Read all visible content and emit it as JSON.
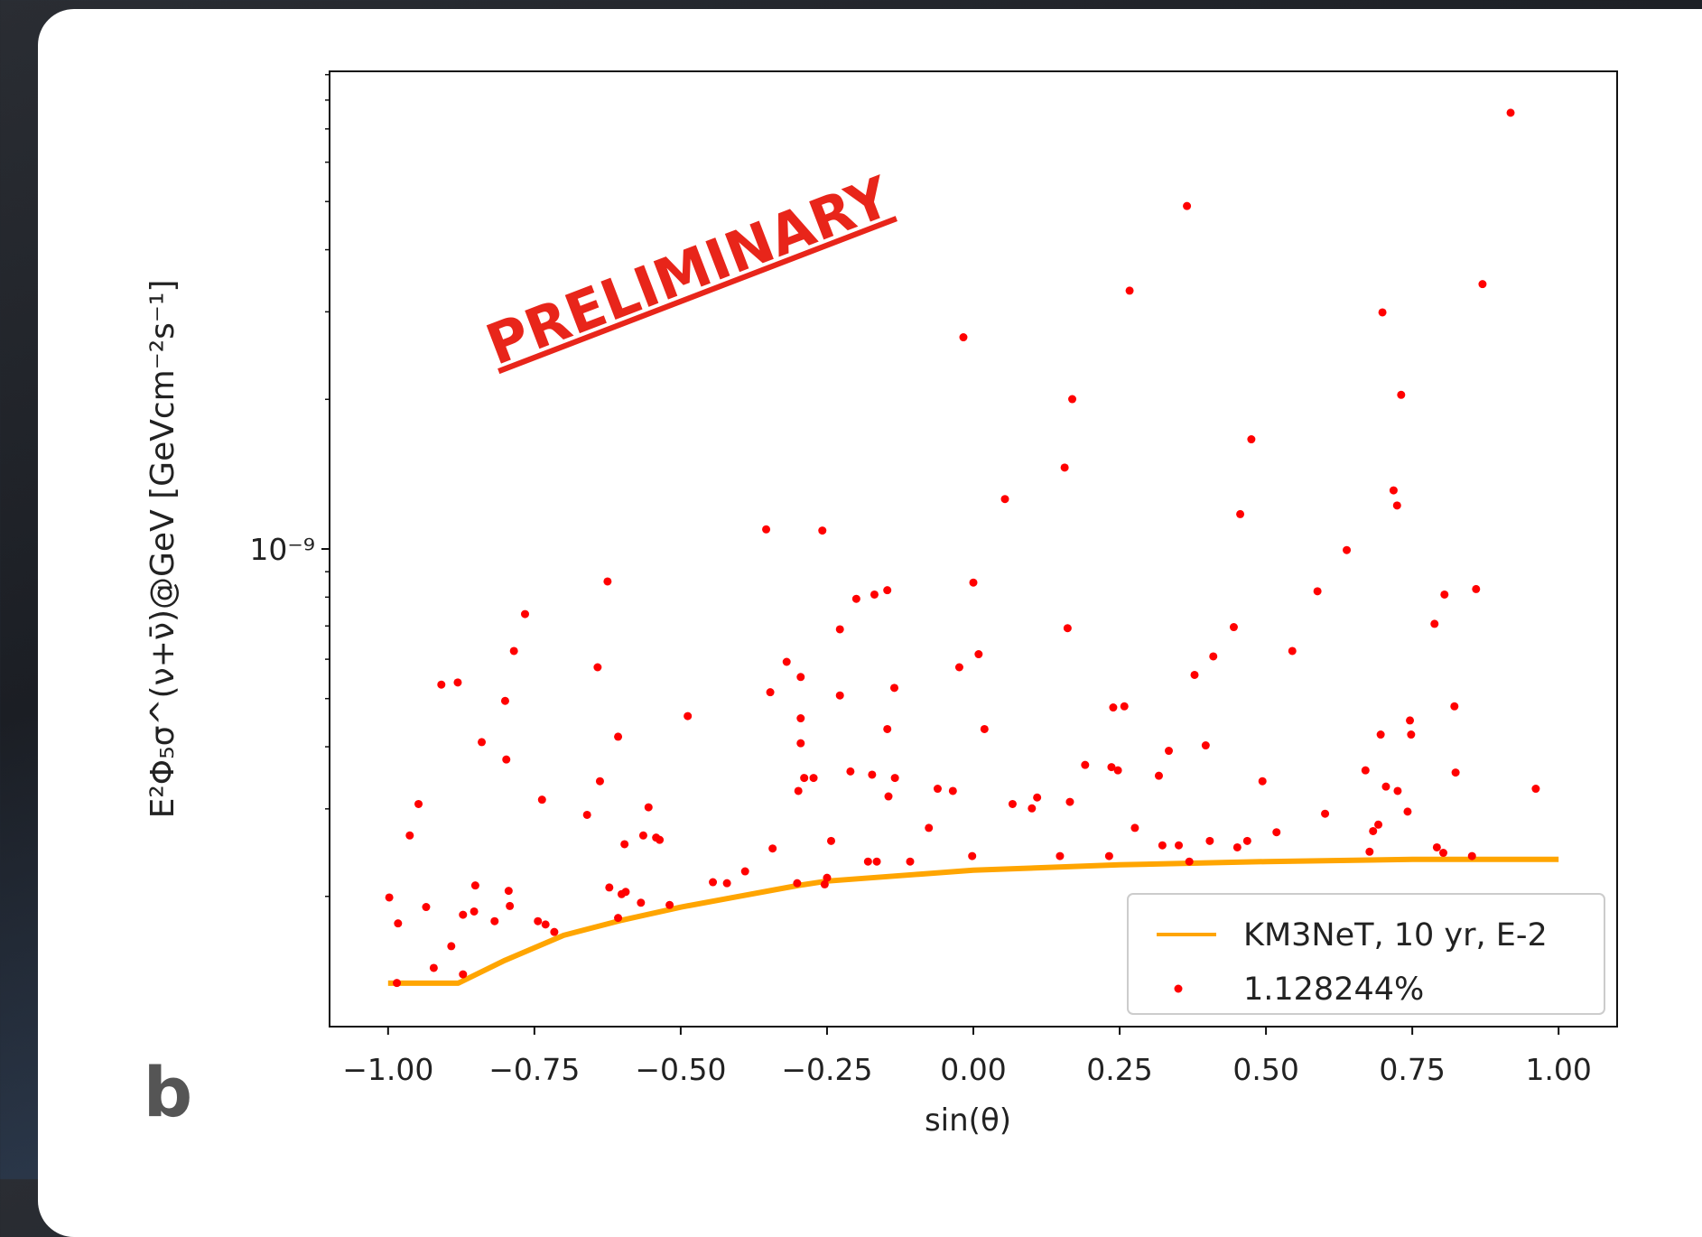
{
  "chart_data": {
    "type": "scatter",
    "xlabel": "sin(θ)",
    "ylabel": "E²Φ₅σ^(ν+ν̄)@GeV [GeVcm⁻²s⁻¹]",
    "annotation": "PRELIMINARY",
    "panel_label": "b",
    "ylog": true,
    "legend": "lower right",
    "xlim": [
      -1.1,
      1.1
    ],
    "ylim": [
      1.094e-10,
      9.14e-09
    ],
    "xticks": [
      {
        "value": -1,
        "label": "−1.00"
      },
      {
        "value": -0.75,
        "label": "−0.75"
      },
      {
        "value": -0.5,
        "label": "−0.50"
      },
      {
        "value": -0.25,
        "label": "−0.25"
      },
      {
        "value": 0,
        "label": "0.00"
      },
      0.25,
      {
        "value": 0.5,
        "label": "0.50"
      },
      0.75,
      {
        "value": 1,
        "label": "1.00"
      }
    ],
    "yticks": [
      {
        "value": 1e-09,
        "label": "10⁻⁹"
      }
    ],
    "yticks_minor": [
      2e-10,
      3e-10,
      4e-10,
      5e-10,
      6e-10,
      7e-10,
      8e-10,
      9e-10,
      2e-09,
      3e-09,
      4e-09,
      5e-09,
      6e-09,
      7e-09,
      8e-09,
      9e-09
    ],
    "series": [
      {
        "name": "KM3NeT, 10 yr, E-2",
        "type": "line",
        "color": "#ffa500",
        "x": [
          -1,
          -0.88,
          -0.8,
          -0.7,
          -0.6,
          -0.5,
          -0.4,
          -0.3,
          -0.25,
          -0.1,
          0,
          0.25,
          0.5,
          0.75,
          1
        ],
        "values": [
          1.338e-10,
          1.338e-10,
          1.488e-10,
          1.67e-10,
          1.792e-10,
          1.903e-10,
          2.001e-10,
          2.103e-10,
          2.147e-10,
          2.213e-10,
          2.258e-10,
          2.315e-10,
          2.35e-10,
          2.374e-10,
          2.374e-10
        ]
      },
      {
        "name": "1.128244%",
        "type": "scatter",
        "color": "#ff0000",
        "x": [
          -0.998,
          -0.983,
          -0.985,
          -0.963,
          -0.948,
          -0.935,
          -0.922,
          -0.892,
          -0.909,
          -0.881,
          -0.872,
          -0.872,
          -0.853,
          -0.851,
          -0.84,
          -0.818,
          -0.8,
          -0.798,
          -0.794,
          -0.792,
          -0.785,
          -0.766,
          -0.744,
          -0.737,
          -0.731,
          -0.716,
          -0.66,
          -0.642,
          -0.638,
          -0.625,
          -0.622,
          -0.607,
          -0.607,
          -0.601,
          -0.596,
          -0.594,
          -0.568,
          -0.564,
          -0.555,
          -0.542,
          -0.536,
          -0.519,
          -0.488,
          -0.445,
          -0.421,
          -0.39,
          -0.354,
          -0.347,
          -0.343,
          -0.319,
          -0.301,
          -0.299,
          -0.295,
          -0.295,
          -0.295,
          -0.289,
          -0.273,
          -0.258,
          -0.254,
          -0.25,
          -0.243,
          -0.228,
          -0.228,
          -0.21,
          -0.2,
          -0.18,
          -0.173,
          -0.169,
          -0.165,
          -0.147,
          -0.147,
          -0.145,
          -0.135,
          -0.134,
          -0.108,
          -0.076,
          -0.061,
          -0.035,
          -0.024,
          -0.017,
          -0.002,
          0.0,
          0.009,
          0.019,
          0.054,
          0.067,
          0.1,
          0.109,
          0.148,
          0.156,
          0.161,
          0.165,
          0.169,
          0.191,
          0.232,
          0.236,
          0.239,
          0.247,
          0.258,
          0.267,
          0.276,
          0.317,
          0.323,
          0.334,
          0.351,
          0.365,
          0.369,
          0.378,
          0.397,
          0.404,
          0.41,
          0.445,
          0.451,
          0.456,
          0.468,
          0.475,
          0.494,
          0.518,
          0.545,
          0.588,
          0.601,
          0.638,
          0.67,
          0.677,
          0.683,
          0.692,
          0.696,
          0.699,
          0.705,
          0.718,
          0.724,
          0.725,
          0.731,
          0.742,
          0.746,
          0.748,
          0.788,
          0.792,
          0.803,
          0.805,
          0.822,
          0.824,
          0.852,
          0.859,
          0.87,
          0.918,
          0.961
        ],
        "values": [
          1.99e-10,
          1.765e-10,
          1.339e-10,
          2.652e-10,
          3.068e-10,
          1.904e-10,
          1.436e-10,
          1.588e-10,
          5.334e-10,
          5.388e-10,
          1.837e-10,
          1.394e-10,
          1.865e-10,
          2.104e-10,
          4.087e-10,
          1.783e-10,
          4.947e-10,
          3.771e-10,
          2.052e-10,
          1.913e-10,
          6.234e-10,
          7.396e-10,
          1.783e-10,
          3.13e-10,
          1.756e-10,
          1.696e-10,
          2.918e-10,
          5.781e-10,
          3.41e-10,
          8.602e-10,
          2.084e-10,
          4.191e-10,
          1.81e-10,
          2.021e-10,
          2.547e-10,
          2.042e-10,
          1.942e-10,
          2.652e-10,
          3.022e-10,
          2.626e-10,
          2.599e-10,
          1.922e-10,
          4.611e-10,
          2.136e-10,
          2.126e-10,
          2.246e-10,
          1.095e-09,
          5.15e-10,
          2.497e-10,
          5.928e-10,
          2.126e-10,
          3.26e-10,
          5.526e-10,
          4.564e-10,
          4.066e-10,
          3.462e-10,
          3.462e-10,
          1.089e-09,
          2.115e-10,
          2.18e-10,
          2.586e-10,
          6.892e-10,
          5.073e-10,
          3.568e-10,
          7.937e-10,
          2.35e-10,
          3.515e-10,
          8.097e-10,
          2.35e-10,
          8.261e-10,
          4.341e-10,
          3.178e-10,
          5.254e-10,
          3.462e-10,
          2.35e-10,
          2.747e-10,
          3.293e-10,
          3.26e-10,
          5.781e-10,
          2.666e-09,
          2.411e-10,
          8.558e-10,
          6.141e-10,
          4.341e-10,
          1.26e-09,
          3.068e-10,
          3.007e-10,
          3.162e-10,
          2.411e-10,
          1.458e-09,
          6.928e-10,
          3.099e-10,
          2.002e-09,
          3.677e-10,
          2.411e-10,
          3.64e-10,
          4.799e-10,
          3.586e-10,
          4.824e-10,
          3.309e-09,
          2.747e-10,
          3.497e-10,
          2.534e-10,
          3.926e-10,
          2.534e-10,
          4.898e-09,
          2.35e-10,
          5.58e-10,
          4.025e-10,
          2.586e-10,
          6.08e-10,
          6.963e-10,
          2.51e-10,
          1.175e-09,
          2.586e-10,
          1.662e-09,
          3.41e-10,
          2.692e-10,
          6.234e-10,
          8.22e-10,
          2.933e-10,
          9.95e-10,
          3.586e-10,
          2.46e-10,
          2.706e-10,
          2.789e-10,
          4.233e-10,
          2.992e-09,
          3.326e-10,
          1.312e-09,
          1.223e-09,
          3.26e-10,
          2.042e-09,
          2.962e-10,
          4.519e-10,
          4.233e-10,
          7.07e-10,
          2.51e-10,
          2.447e-10,
          8.097e-10,
          4.824e-10,
          3.55e-10,
          2.411e-10,
          8.304e-10,
          3.411e-09,
          7.544e-09,
          3.293e-10
        ]
      }
    ]
  }
}
